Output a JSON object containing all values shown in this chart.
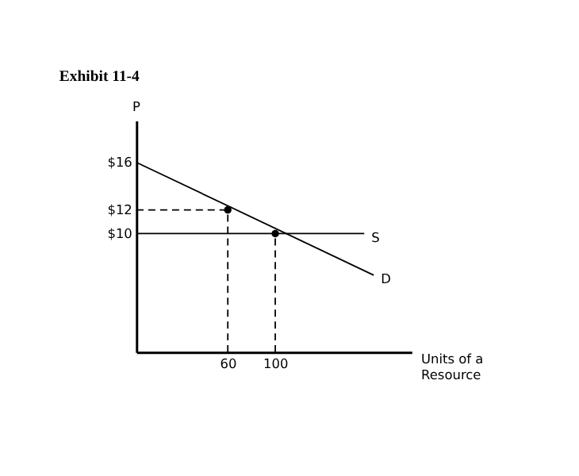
{
  "chart_data": {
    "type": "line",
    "title": "Exhibit 11-4",
    "xlabel": "Units of a Resource",
    "ylabel": "P",
    "xlim": [
      -17,
      215
    ],
    "xticks": [
      60,
      100
    ],
    "ylim": [
      0,
      19.5
    ],
    "yticks": [
      {
        "value": 16,
        "label": "$16"
      },
      {
        "value": 12,
        "label": "$12"
      },
      {
        "value": 10,
        "label": "$10"
      }
    ],
    "grid": false,
    "legend": false,
    "marker": "none",
    "series": [
      {
        "name": "D",
        "color": "#000000",
        "x": [
          -17,
          183
        ],
        "values": [
          16,
          6.5
        ]
      },
      {
        "name": "S",
        "color": "#000000",
        "x": [
          -17,
          175
        ],
        "values": [
          10,
          10
        ]
      },
      {
        "color": "#000000",
        "line_style": "dashed",
        "x": [
          -17,
          60
        ],
        "values": [
          12,
          12
        ]
      },
      {
        "color": "#000000",
        "line_style": "dashed",
        "x": [
          60,
          60
        ],
        "values": [
          0,
          12
        ]
      },
      {
        "color": "#000000",
        "line_style": "dashed",
        "x": [
          100,
          100
        ],
        "values": [
          0,
          10
        ]
      },
      {
        "type": "scatter",
        "color": "#000000",
        "marker": "circle",
        "x": [
          60,
          100
        ],
        "values": [
          12,
          10
        ]
      }
    ]
  }
}
